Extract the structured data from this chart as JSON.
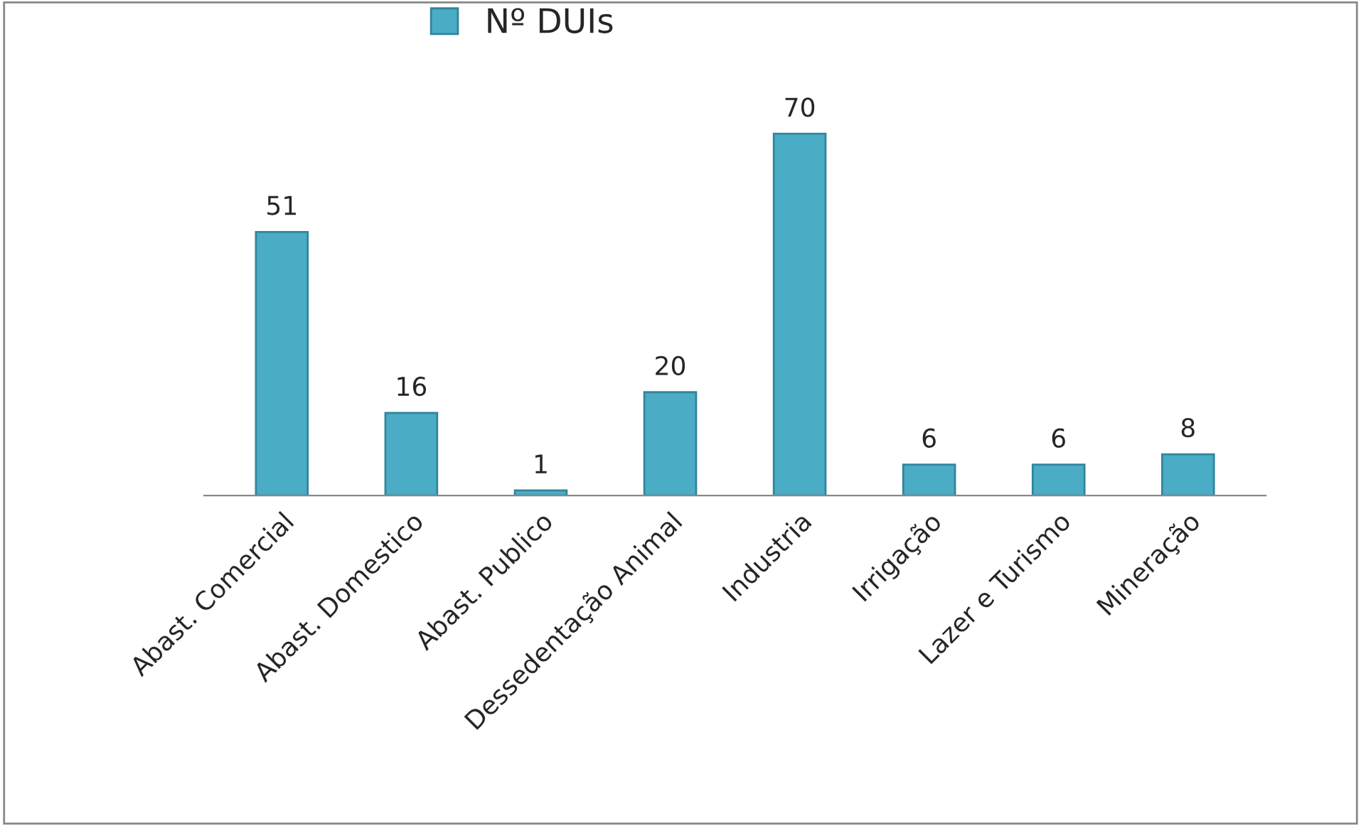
{
  "chart_data": {
    "type": "bar",
    "categories": [
      "Abast. Comercial",
      "Abast. Domestico",
      "Abast. Publico",
      "Dessedentação Animal",
      "Industria",
      "Irrigação",
      "Lazer e Turismo",
      "Mineração"
    ],
    "series": [
      {
        "name": "Nº DUIs",
        "color": "#4bacc6",
        "values": [
          51,
          16,
          1,
          20,
          70,
          6,
          6,
          8
        ]
      }
    ],
    "data_labels": true,
    "legend": "top",
    "grid": false,
    "tick_labels": "x"
  }
}
